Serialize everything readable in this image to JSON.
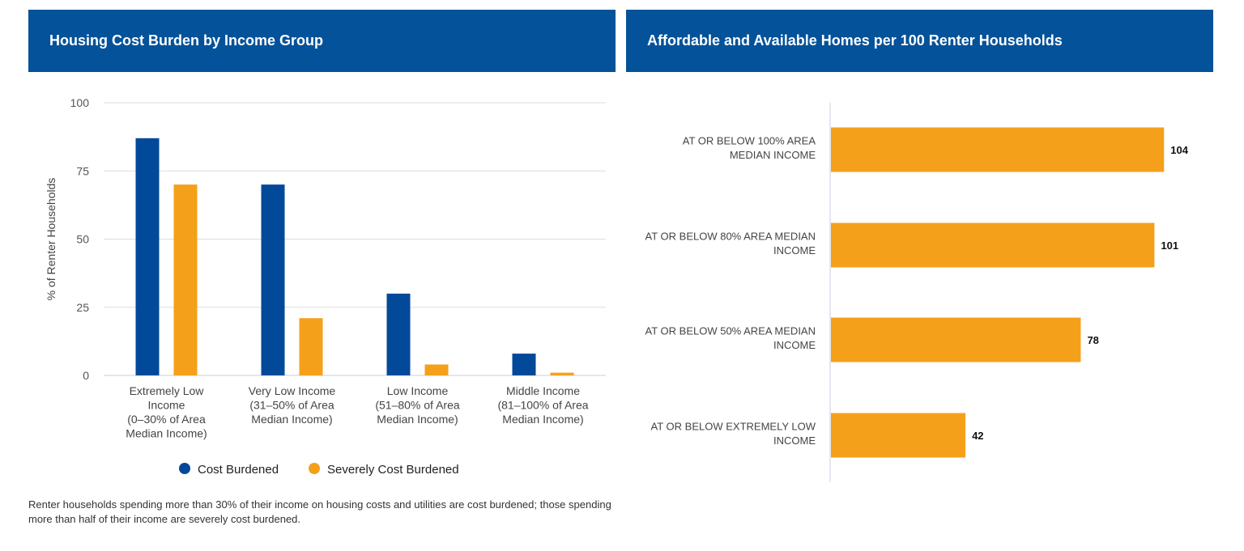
{
  "left_panel": {
    "title": "Housing Cost Burden by Income Group"
  },
  "right_panel": {
    "title": "Affordable and Available Homes per 100 Renter Households"
  },
  "footnote": "Renter households spending more than 30% of their income on housing costs and utilities are cost burdened; those spending more than half of their income are severely cost burdened.",
  "colors": {
    "header": "#03529a",
    "cost_burdened": "#03499a",
    "severely_cost_burdened": "#f5a01a",
    "grid": "#dddddd"
  },
  "chart_data": [
    {
      "type": "bar",
      "title": "Housing Cost Burden by Income Group",
      "ylabel": "% of Renter Households",
      "ylim": [
        0,
        100
      ],
      "yticks": [
        0,
        25,
        50,
        75,
        100
      ],
      "categories": [
        [
          "Extremely Low",
          "Income",
          "(0–30% of Area",
          "Median Income)"
        ],
        [
          "Very Low Income",
          "(31–50% of Area",
          "Median Income)"
        ],
        [
          "Low Income",
          "(51–80% of Area",
          "Median Income)"
        ],
        [
          "Middle Income",
          "(81–100% of Area",
          "Median Income)"
        ]
      ],
      "series": [
        {
          "name": "Cost Burdened",
          "values": [
            87,
            70,
            30,
            8
          ]
        },
        {
          "name": "Severely Cost Burdened",
          "values": [
            70,
            21,
            4,
            1
          ]
        }
      ],
      "grid": true,
      "legend": "bottom"
    },
    {
      "type": "bar",
      "orientation": "horizontal",
      "title": "Affordable and Available Homes per 100 Renter Households",
      "categories": [
        [
          "AT OR BELOW 100% AREA",
          "MEDIAN INCOME"
        ],
        [
          "AT OR BELOW 80% AREA MEDIAN",
          "INCOME"
        ],
        [
          "AT OR BELOW 50% AREA MEDIAN",
          "INCOME"
        ],
        [
          "AT OR BELOW EXTREMELY LOW",
          "INCOME"
        ]
      ],
      "values": [
        104,
        101,
        78,
        42
      ],
      "data_labels": [
        "104",
        "101",
        "78",
        "42"
      ]
    }
  ]
}
